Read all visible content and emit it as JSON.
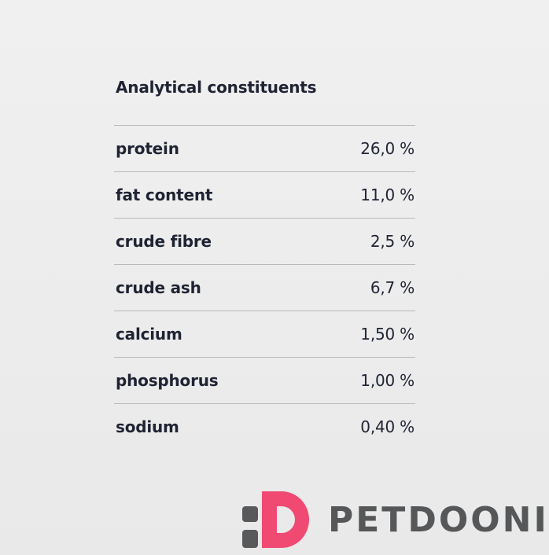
{
  "header": {
    "title": "Analytical constituents"
  },
  "table": {
    "rows": [
      [
        "protein",
        "26,0 %"
      ],
      [
        "fat content",
        "11,0 %"
      ],
      [
        "crude fibre",
        "2,5 %"
      ],
      [
        "crude ash",
        "6,7 %"
      ],
      [
        "calcium",
        "1,50 %"
      ],
      [
        "phosphorus",
        "1,00 %"
      ],
      [
        "sodium",
        "0,40 %"
      ]
    ]
  },
  "logo": {
    "text": "PETDOONI"
  }
}
